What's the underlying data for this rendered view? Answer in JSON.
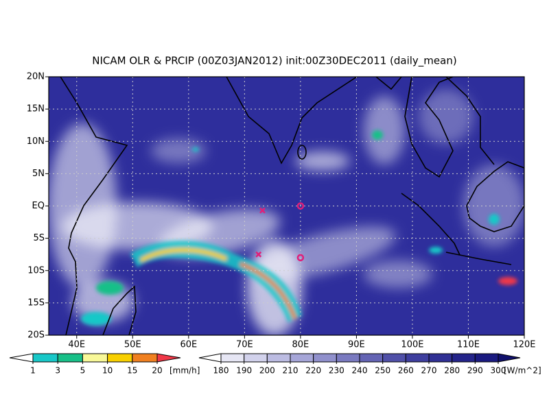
{
  "title": "NICAM OLR & PRCIP (00Z03JAN2012) init:00Z30DEC2011 (daily_mean)",
  "map": {
    "xlim": [
      35,
      120
    ],
    "ylim": [
      -20,
      20
    ],
    "xticks": [
      {
        "value": 40,
        "label": "40E"
      },
      {
        "value": 50,
        "label": "50E"
      },
      {
        "value": 60,
        "label": "60E"
      },
      {
        "value": 70,
        "label": "70E"
      },
      {
        "value": 80,
        "label": "80E"
      },
      {
        "value": 90,
        "label": "90E"
      },
      {
        "value": 100,
        "label": "100E"
      },
      {
        "value": 110,
        "label": "110E"
      },
      {
        "value": 120,
        "label": "120E"
      }
    ],
    "yticks": [
      {
        "value": 20,
        "label": "20N"
      },
      {
        "value": 15,
        "label": "15N"
      },
      {
        "value": 10,
        "label": "10N"
      },
      {
        "value": 5,
        "label": "5N"
      },
      {
        "value": 0,
        "label": "EQ"
      },
      {
        "value": -5,
        "label": "5S"
      },
      {
        "value": -10,
        "label": "10S"
      },
      {
        "value": -15,
        "label": "15S"
      },
      {
        "value": -20,
        "label": "20S"
      }
    ],
    "grid": true,
    "markers": [
      {
        "symbol": "x",
        "lon": 73.2,
        "lat": -0.7,
        "color": "#e0207a"
      },
      {
        "symbol": "o",
        "lon": 80,
        "lat": 0,
        "color": "#e0207a"
      },
      {
        "symbol": "x",
        "lon": 72.5,
        "lat": -7.5,
        "color": "#e0207a"
      },
      {
        "symbol": "o",
        "lon": 80,
        "lat": -8,
        "color": "#e0207a"
      }
    ]
  },
  "precip_colorbar": {
    "ticks": [
      1,
      3,
      5,
      10,
      15,
      20
    ],
    "unit": "[mm/h]",
    "colors": [
      "#ffffff",
      "#18c8c8",
      "#18c088",
      "#f8f898",
      "#f8d000",
      "#f08020",
      "#f03848"
    ]
  },
  "olr_colorbar": {
    "ticks": [
      180,
      190,
      200,
      210,
      220,
      230,
      240,
      250,
      260,
      270,
      280,
      290,
      300
    ],
    "unit": "[W/m^2]",
    "colors": [
      "#ffffff",
      "#e6e6f4",
      "#d2d2ec",
      "#bcbce2",
      "#a6a6d8",
      "#9090cc",
      "#7a7ac0",
      "#6464b4",
      "#5050a8",
      "#3e3e9e",
      "#303094",
      "#24248a",
      "#1a1a80",
      "#10106c"
    ]
  }
}
